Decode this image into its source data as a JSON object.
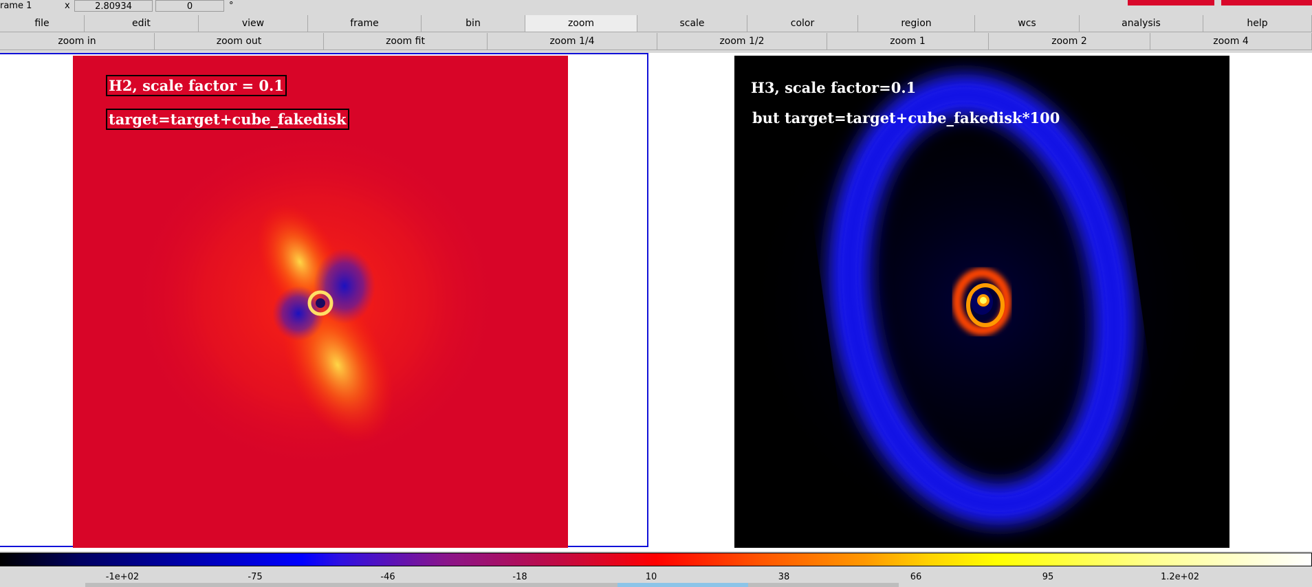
{
  "infobar": {
    "frame_label": "rame 1",
    "x_label": "x",
    "x_value": "2.80934",
    "angle_value": "0",
    "degree_symbol": "°"
  },
  "menu": {
    "items": [
      {
        "label": "file"
      },
      {
        "label": "edit"
      },
      {
        "label": "view"
      },
      {
        "label": "frame"
      },
      {
        "label": "bin"
      },
      {
        "label": "zoom"
      },
      {
        "label": "scale"
      },
      {
        "label": "color"
      },
      {
        "label": "region"
      },
      {
        "label": "wcs"
      },
      {
        "label": "analysis"
      },
      {
        "label": "help"
      }
    ],
    "active": "zoom"
  },
  "zoom_menu": {
    "items": [
      {
        "label": "zoom in"
      },
      {
        "label": "zoom out"
      },
      {
        "label": "zoom fit"
      },
      {
        "label": "zoom 1/4"
      },
      {
        "label": "zoom 1/2"
      },
      {
        "label": "zoom 1"
      },
      {
        "label": "zoom 2"
      },
      {
        "label": "zoom 4"
      }
    ]
  },
  "frame1": {
    "label1": "H2, scale factor = 0.1",
    "label2": "target=target+cube_fakedisk"
  },
  "frame2": {
    "label1": "H3, scale factor=0.1",
    "label2": "but target=target+cube_fakedisk*100"
  },
  "colorbar": {
    "ticks": [
      "-1e+02",
      "-75",
      "-46",
      "-18",
      "10",
      "38",
      "66",
      "95",
      "1.2e+02"
    ]
  },
  "colors": {
    "accent_red": "#d9082b",
    "frame_border": "#1010d8"
  }
}
